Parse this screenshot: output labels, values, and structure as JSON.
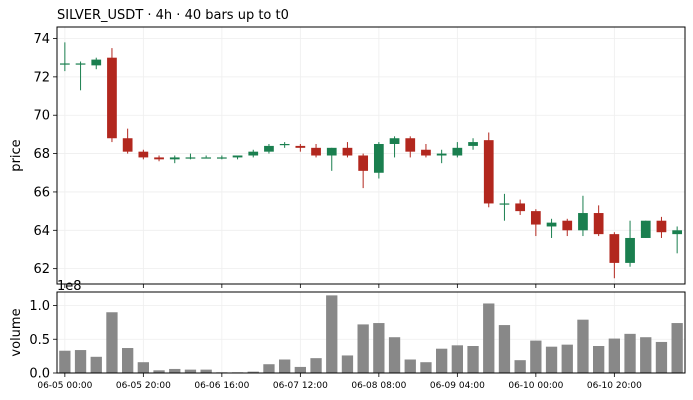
{
  "chart_data": {
    "type": "candlestick",
    "title": "SILVER_USDT  ·  4h  ·  40 bars up to t0",
    "colors": {
      "up": "#1a7f4f",
      "down": "#b2271e",
      "volume": "#888888",
      "grid": "#eeeeee"
    },
    "price_panel": {
      "ylabel": "price",
      "ylim": [
        61.2,
        74.6
      ],
      "yticks": [
        62,
        64,
        66,
        68,
        70,
        72,
        74
      ],
      "grid": true
    },
    "volume_panel": {
      "ylabel": "volume",
      "multiplier_label": "1e8",
      "ylim": [
        0,
        1.2
      ],
      "yticks": [
        0.0,
        0.5,
        1.0
      ],
      "ytick_labels": [
        "0.0",
        "0.5",
        "1.0"
      ],
      "grid": true
    },
    "x_tick_labels": [
      {
        "index": 0,
        "label": "06-05 00:00"
      },
      {
        "index": 5,
        "label": "06-05 20:00"
      },
      {
        "index": 10,
        "label": "06-06 16:00"
      },
      {
        "index": 15,
        "label": "06-07 12:00"
      },
      {
        "index": 20,
        "label": "06-08 08:00"
      },
      {
        "index": 25,
        "label": "06-09 04:00"
      },
      {
        "index": 30,
        "label": "06-10 00:00"
      },
      {
        "index": 35,
        "label": "06-10 20:00"
      }
    ],
    "candles": [
      {
        "o": 72.7,
        "h": 73.8,
        "l": 72.3,
        "c": 72.7,
        "v": 0.33
      },
      {
        "o": 72.7,
        "h": 72.8,
        "l": 71.3,
        "c": 72.7,
        "v": 0.34
      },
      {
        "o": 72.6,
        "h": 73.0,
        "l": 72.4,
        "c": 72.9,
        "v": 0.24
      },
      {
        "o": 73.0,
        "h": 73.5,
        "l": 68.6,
        "c": 68.8,
        "v": 0.9
      },
      {
        "o": 68.8,
        "h": 69.3,
        "l": 68.0,
        "c": 68.1,
        "v": 0.37
      },
      {
        "o": 68.1,
        "h": 68.2,
        "l": 67.7,
        "c": 67.8,
        "v": 0.16
      },
      {
        "o": 67.8,
        "h": 67.9,
        "l": 67.6,
        "c": 67.7,
        "v": 0.04
      },
      {
        "o": 67.7,
        "h": 67.9,
        "l": 67.5,
        "c": 67.8,
        "v": 0.06
      },
      {
        "o": 67.8,
        "h": 68.0,
        "l": 67.7,
        "c": 67.8,
        "v": 0.05
      },
      {
        "o": 67.8,
        "h": 67.9,
        "l": 67.8,
        "c": 67.8,
        "v": 0.05
      },
      {
        "o": 67.8,
        "h": 67.9,
        "l": 67.7,
        "c": 67.8,
        "v": 0.01
      },
      {
        "o": 67.8,
        "h": 67.9,
        "l": 67.7,
        "c": 67.9,
        "v": 0.01
      },
      {
        "o": 67.9,
        "h": 68.2,
        "l": 67.8,
        "c": 68.1,
        "v": 0.02
      },
      {
        "o": 68.1,
        "h": 68.5,
        "l": 68.0,
        "c": 68.4,
        "v": 0.13
      },
      {
        "o": 68.5,
        "h": 68.6,
        "l": 68.3,
        "c": 68.5,
        "v": 0.2
      },
      {
        "o": 68.4,
        "h": 68.5,
        "l": 68.1,
        "c": 68.3,
        "v": 0.09
      },
      {
        "o": 68.3,
        "h": 68.5,
        "l": 67.8,
        "c": 67.9,
        "v": 0.22
      },
      {
        "o": 67.9,
        "h": 68.3,
        "l": 67.1,
        "c": 68.3,
        "v": 1.15
      },
      {
        "o": 68.3,
        "h": 68.6,
        "l": 67.8,
        "c": 67.9,
        "v": 0.26
      },
      {
        "o": 67.9,
        "h": 68.0,
        "l": 66.2,
        "c": 67.1,
        "v": 0.72
      },
      {
        "o": 67.0,
        "h": 68.6,
        "l": 66.7,
        "c": 68.5,
        "v": 0.74
      },
      {
        "o": 68.5,
        "h": 68.9,
        "l": 67.8,
        "c": 68.8,
        "v": 0.53
      },
      {
        "o": 68.8,
        "h": 68.9,
        "l": 67.8,
        "c": 68.1,
        "v": 0.2
      },
      {
        "o": 68.2,
        "h": 68.5,
        "l": 67.8,
        "c": 67.9,
        "v": 0.16
      },
      {
        "o": 67.9,
        "h": 68.2,
        "l": 67.5,
        "c": 68.0,
        "v": 0.36
      },
      {
        "o": 67.9,
        "h": 68.6,
        "l": 67.8,
        "c": 68.3,
        "v": 0.41
      },
      {
        "o": 68.4,
        "h": 68.8,
        "l": 68.2,
        "c": 68.6,
        "v": 0.4
      },
      {
        "o": 68.7,
        "h": 69.1,
        "l": 65.2,
        "c": 65.4,
        "v": 1.03
      },
      {
        "o": 65.4,
        "h": 65.9,
        "l": 64.5,
        "c": 65.4,
        "v": 0.71
      },
      {
        "o": 65.4,
        "h": 65.6,
        "l": 64.8,
        "c": 65.0,
        "v": 0.19
      },
      {
        "o": 65.0,
        "h": 65.1,
        "l": 63.7,
        "c": 64.3,
        "v": 0.48
      },
      {
        "o": 64.2,
        "h": 64.6,
        "l": 63.6,
        "c": 64.4,
        "v": 0.39
      },
      {
        "o": 64.5,
        "h": 64.6,
        "l": 63.7,
        "c": 64.0,
        "v": 0.42
      },
      {
        "o": 64.0,
        "h": 65.8,
        "l": 63.7,
        "c": 64.9,
        "v": 0.79
      },
      {
        "o": 64.9,
        "h": 65.3,
        "l": 63.7,
        "c": 63.8,
        "v": 0.4
      },
      {
        "o": 63.8,
        "h": 63.9,
        "l": 61.5,
        "c": 62.3,
        "v": 0.51
      },
      {
        "o": 62.3,
        "h": 64.5,
        "l": 62.1,
        "c": 63.6,
        "v": 0.58
      },
      {
        "o": 63.6,
        "h": 64.5,
        "l": 63.6,
        "c": 64.5,
        "v": 0.53
      },
      {
        "o": 64.5,
        "h": 64.7,
        "l": 63.6,
        "c": 63.9,
        "v": 0.46
      },
      {
        "o": 63.8,
        "h": 64.2,
        "l": 62.8,
        "c": 64.0,
        "v": 0.74
      }
    ]
  }
}
